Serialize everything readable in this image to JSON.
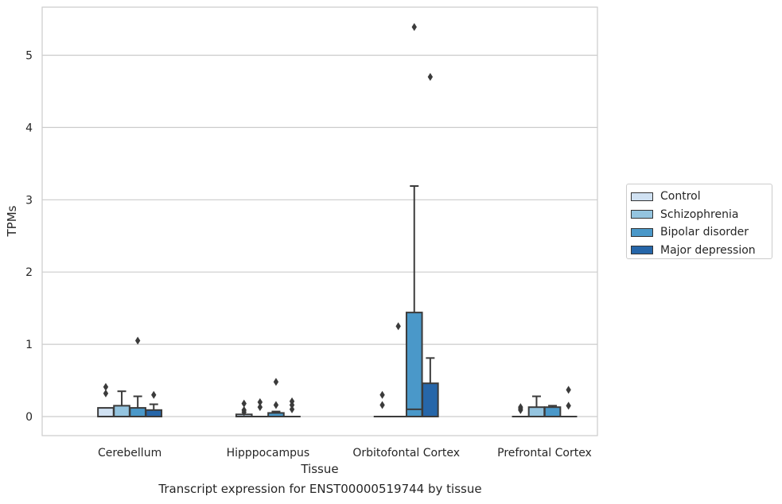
{
  "chart_data": {
    "type": "box",
    "title": "",
    "caption": "Transcript expression for ENST00000519744 by tissue",
    "xlabel": "Tissue",
    "ylabel": "TPMs",
    "ylim": [
      -0.27,
      5.67
    ],
    "yticks": [
      0,
      1,
      2,
      3,
      4,
      5
    ],
    "grid": "horizontal",
    "legend_position": "right",
    "categories": [
      "Cerebellum",
      "Hipppocampus",
      "Orbitofontal Cortex",
      "Prefrontal Cortex"
    ],
    "series": [
      {
        "name": "Control",
        "color": "#d0e1f2",
        "boxes": [
          {
            "q1": 0,
            "median": 0,
            "q3": 0.12,
            "whisker_low": 0,
            "whisker_high": 0.12,
            "outliers": [
              0.32,
              0.41
            ]
          },
          {
            "q1": 0,
            "median": 0,
            "q3": 0.03,
            "whisker_low": 0,
            "whisker_high": 0.03,
            "outliers": [
              0.06,
              0.09,
              0.18
            ]
          },
          {
            "q1": 0,
            "median": 0,
            "q3": 0,
            "whisker_low": 0,
            "whisker_high": 0,
            "outliers": [
              0.16,
              0.3
            ]
          },
          {
            "q1": 0,
            "median": 0,
            "q3": 0,
            "whisker_low": 0,
            "whisker_high": 0,
            "outliers": [
              0.09,
              0.11,
              0.13
            ]
          }
        ]
      },
      {
        "name": "Schizophrenia",
        "color": "#94c4df",
        "boxes": [
          {
            "q1": 0,
            "median": 0,
            "q3": 0.15,
            "whisker_low": 0,
            "whisker_high": 0.35,
            "outliers": []
          },
          {
            "q1": 0,
            "median": 0,
            "q3": 0,
            "whisker_low": 0,
            "whisker_high": 0,
            "outliers": [
              0.13,
              0.2
            ]
          },
          {
            "q1": 0,
            "median": 0,
            "q3": 0,
            "whisker_low": 0,
            "whisker_high": 0,
            "outliers": [
              1.25
            ]
          },
          {
            "q1": 0,
            "median": 0,
            "q3": 0.13,
            "whisker_low": 0,
            "whisker_high": 0.28,
            "outliers": []
          }
        ]
      },
      {
        "name": "Bipolar disorder",
        "color": "#4a98c9",
        "boxes": [
          {
            "q1": 0,
            "median": 0,
            "q3": 0.12,
            "whisker_low": 0,
            "whisker_high": 0.28,
            "outliers": [
              1.05
            ]
          },
          {
            "q1": 0,
            "median": 0,
            "q3": 0.05,
            "whisker_low": 0,
            "whisker_high": 0.07,
            "outliers": [
              0.16,
              0.48
            ]
          },
          {
            "q1": 0,
            "median": 0.1,
            "q3": 1.44,
            "whisker_low": 0,
            "whisker_high": 3.19,
            "outliers": [
              5.39
            ]
          },
          {
            "q1": 0,
            "median": 0,
            "q3": 0.13,
            "whisker_low": 0,
            "whisker_high": 0.15,
            "outliers": []
          }
        ]
      },
      {
        "name": "Major depression",
        "color": "#2666a9",
        "boxes": [
          {
            "q1": 0,
            "median": 0,
            "q3": 0.09,
            "whisker_low": 0,
            "whisker_high": 0.17,
            "outliers": [
              0.3
            ]
          },
          {
            "q1": 0,
            "median": 0,
            "q3": 0,
            "whisker_low": 0,
            "whisker_high": 0,
            "outliers": [
              0.1,
              0.16,
              0.21
            ]
          },
          {
            "q1": 0,
            "median": 0,
            "q3": 0.46,
            "whisker_low": 0,
            "whisker_high": 0.81,
            "outliers": [
              4.7
            ]
          },
          {
            "q1": 0,
            "median": 0,
            "q3": 0,
            "whisker_low": 0,
            "whisker_high": 0,
            "outliers": [
              0.15,
              0.37
            ]
          }
        ]
      }
    ]
  }
}
